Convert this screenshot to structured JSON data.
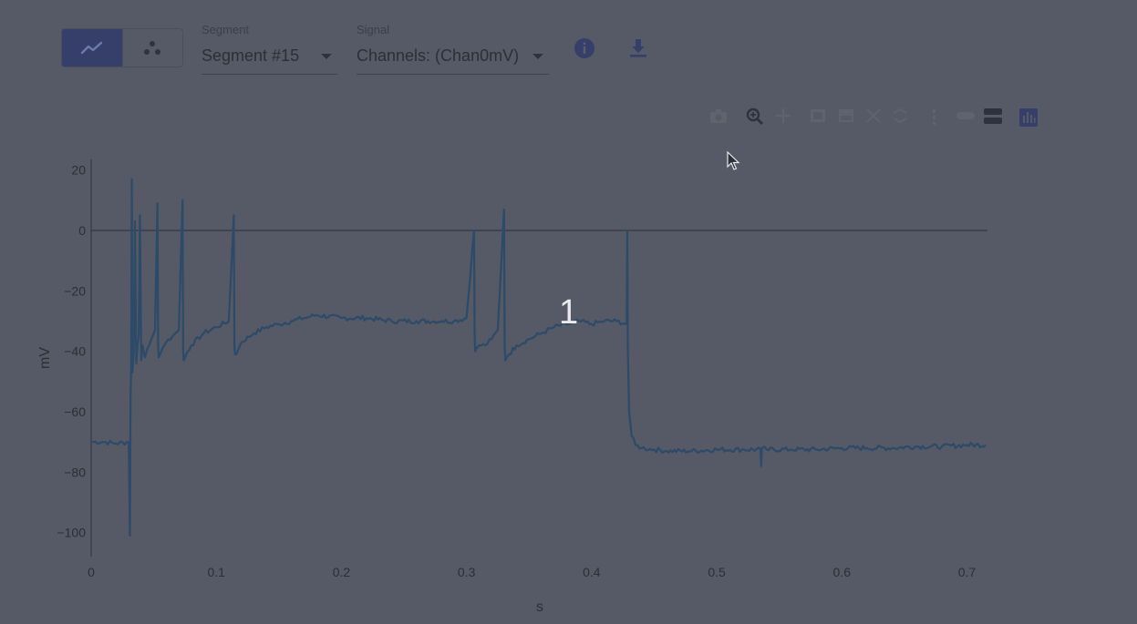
{
  "toolbar": {
    "view_modes": [
      {
        "name": "line",
        "icon": "line-chart-icon",
        "active": true
      },
      {
        "name": "scatter",
        "icon": "scatter-chart-icon",
        "active": false
      }
    ],
    "segment": {
      "label": "Segment",
      "value": "Segment #15"
    },
    "signal": {
      "label": "Signal",
      "value": "Channels: (Chan0mV)"
    },
    "icons": [
      "info-icon",
      "download-icon"
    ]
  },
  "modebar_icons": [
    "camera-icon",
    "zoom-icon",
    "pan-icon",
    "box-select-icon",
    "lasso-icon",
    "zoom-in-icon",
    "zoom-out-icon",
    "autoscale-icon",
    "reset-axes-icon",
    "spike-lines-icon",
    "hover-closest-icon",
    "hover-compare-icon",
    "plotly-logo-icon"
  ],
  "overlay_text": "1",
  "colors": {
    "trace": "#2d4a68",
    "accent": "#353f69",
    "background": "#555a66"
  },
  "chart_data": {
    "type": "line",
    "title": "",
    "xlabel": "s",
    "ylabel": "mV",
    "xlim": [
      0,
      0.72
    ],
    "ylim": [
      -107,
      23
    ],
    "x_ticks": [
      0,
      0.1,
      0.2,
      0.3,
      0.4,
      0.5,
      0.6,
      0.7
    ],
    "x_tick_labels": [
      "0",
      "0.1",
      "0.2",
      "0.3",
      "0.4",
      "0.5",
      "0.6",
      "0.7"
    ],
    "y_ticks": [
      20,
      0,
      -20,
      -40,
      -60,
      -80,
      -100
    ],
    "y_tick_labels": [
      "20",
      "0",
      "−20",
      "−40",
      "−60",
      "−80",
      "−100"
    ],
    "zero_line": true,
    "series": [
      {
        "x": [
          0,
          0.01,
          0.02,
          0.03,
          0.031,
          0.0315,
          0.032,
          0.0325,
          0.033,
          0.034,
          0.035,
          0.036,
          0.037,
          0.038,
          0.039,
          0.04,
          0.041,
          0.042,
          0.043,
          0.045,
          0.048,
          0.051,
          0.053,
          0.0535,
          0.054,
          0.055,
          0.057,
          0.06,
          0.065,
          0.07,
          0.073,
          0.0735,
          0.074,
          0.075,
          0.077,
          0.08,
          0.09,
          0.1,
          0.11,
          0.114,
          0.1145,
          0.115,
          0.116,
          0.118,
          0.12,
          0.13,
          0.14,
          0.15,
          0.16,
          0.17,
          0.18,
          0.2,
          0.22,
          0.24,
          0.26,
          0.28,
          0.29,
          0.3,
          0.306,
          0.3065,
          0.307,
          0.308,
          0.31,
          0.315,
          0.32,
          0.325,
          0.33,
          0.3305,
          0.331,
          0.332,
          0.334,
          0.34,
          0.35,
          0.36,
          0.37,
          0.38,
          0.39,
          0.4,
          0.41,
          0.42,
          0.428,
          0.4285,
          0.429,
          0.43,
          0.432,
          0.435,
          0.44,
          0.45,
          0.46,
          0.48,
          0.5,
          0.52,
          0.535,
          0.5355,
          0.536,
          0.54,
          0.56,
          0.58,
          0.6,
          0.62,
          0.64,
          0.66,
          0.68,
          0.7,
          0.715
        ],
        "y": [
          -70,
          -70,
          -70.5,
          -70,
          -101,
          -55,
          -45,
          17,
          -47,
          -40,
          3,
          -44,
          -38,
          -35,
          5,
          -43,
          -38,
          -40,
          -42,
          -39,
          -36,
          -33,
          9,
          -38,
          -42,
          -41,
          -39,
          -37,
          -35,
          -33,
          10,
          -40,
          -43,
          -42,
          -40,
          -38,
          -34,
          -32,
          -30,
          5,
          -38,
          -41,
          -41,
          -39,
          -37,
          -34,
          -32,
          -31,
          -30,
          -29,
          -28,
          -29,
          -29,
          -30,
          -30,
          -30,
          -30,
          -29,
          0,
          -35,
          -40,
          -39,
          -38,
          -38,
          -36,
          -33,
          7,
          -38,
          -43,
          -42,
          -41,
          -38,
          -36,
          -34,
          -32,
          -31,
          -30,
          -31,
          -30,
          -30,
          -31,
          0,
          -40,
          -60,
          -68,
          -71,
          -72,
          -72.5,
          -73,
          -73,
          -72.5,
          -72.5,
          -72.5,
          -78,
          -72,
          -72.5,
          -72.5,
          -72.5,
          -72,
          -72,
          -72,
          -71.5,
          -71.5,
          -71,
          -71
        ]
      }
    ]
  }
}
